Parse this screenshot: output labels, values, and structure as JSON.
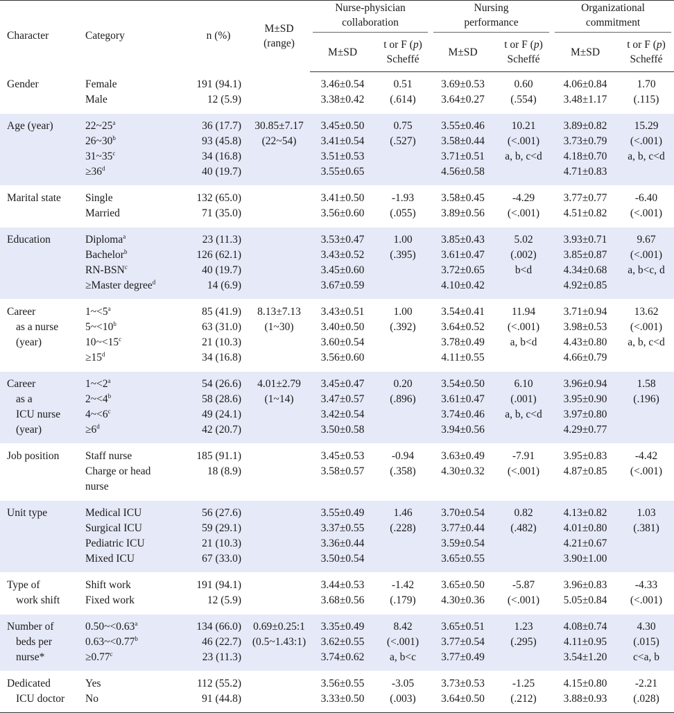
{
  "header": {
    "character": "Character",
    "category": "Category",
    "n": "n (%)",
    "msd_range_1": "M±SD",
    "msd_range_2": "(range)",
    "group1_1": "Nurse-physician",
    "group1_2": "collaboration",
    "group2_1": "Nursing",
    "group2_2": "performance",
    "group3_1": "Organizational",
    "group3_2": "commitment",
    "msd": "M±SD",
    "test_1_pre": "t or F (",
    "test_1_p": "p",
    "test_1_post": ")",
    "test_2": "Scheffé"
  },
  "rows": [
    {
      "character": [
        "Gender"
      ],
      "category": [
        {
          "t": "Female",
          "s": ""
        },
        {
          "t": "Male",
          "s": ""
        }
      ],
      "n": [
        "191 (94.1)",
        "12 (5.9)"
      ],
      "msd_range": [],
      "npc_msd": [
        "3.46±0.54",
        "3.38±0.42"
      ],
      "npc_test": [
        "0.51",
        "(.614)"
      ],
      "np_msd": [
        "3.69±0.53",
        "3.64±0.27"
      ],
      "np_test": [
        "0.60",
        "(.554)"
      ],
      "oc_msd": [
        "4.06±0.84",
        "3.48±1.17"
      ],
      "oc_test": [
        "1.70",
        "(.115)"
      ]
    },
    {
      "character": [
        "Age (year)"
      ],
      "category": [
        {
          "t": "22~25",
          "s": "a"
        },
        {
          "t": "26~30",
          "s": "b"
        },
        {
          "t": "31~35",
          "s": "c"
        },
        {
          "t": "≥36",
          "s": "d"
        }
      ],
      "n": [
        "36 (17.7)",
        "93 (45.8)",
        "34 (16.8)",
        "40 (19.7)"
      ],
      "msd_range": [
        "30.85±7.17",
        "(22~54)"
      ],
      "npc_msd": [
        "3.45±0.50",
        "3.41±0.54",
        "3.51±0.53",
        "3.55±0.65"
      ],
      "npc_test": [
        "0.75",
        "(.527)"
      ],
      "np_msd": [
        "3.55±0.46",
        "3.58±0.44",
        "3.71±0.51",
        "4.56±0.58"
      ],
      "np_test": [
        "10.21",
        "(<.001)",
        "a, b, c<d"
      ],
      "oc_msd": [
        "3.89±0.82",
        "3.73±0.79",
        "4.18±0.70",
        "4.71±0.83"
      ],
      "oc_test": [
        "15.29",
        "(<.001)",
        "a, b, c<d"
      ]
    },
    {
      "character": [
        "Marital state"
      ],
      "category": [
        {
          "t": "Single",
          "s": ""
        },
        {
          "t": "Married",
          "s": ""
        }
      ],
      "n": [
        "132 (65.0)",
        "71 (35.0)"
      ],
      "msd_range": [],
      "npc_msd": [
        "3.41±0.50",
        "3.56±0.60"
      ],
      "npc_test": [
        "-1.93",
        "(.055)"
      ],
      "np_msd": [
        "3.58±0.45",
        "3.89±0.56"
      ],
      "np_test": [
        "-4.29",
        "(<.001)"
      ],
      "oc_msd": [
        "3.77±0.77",
        "4.51±0.82"
      ],
      "oc_test": [
        "-6.40",
        "(<.001)"
      ]
    },
    {
      "character": [
        "Education"
      ],
      "category": [
        {
          "t": "Diploma",
          "s": "a"
        },
        {
          "t": "Bachelor",
          "s": "b"
        },
        {
          "t": "RN-BSN",
          "s": "c"
        },
        {
          "t": "≥Master degree",
          "s": "d"
        }
      ],
      "n": [
        "23 (11.3)",
        "126 (62.1)",
        "40 (19.7)",
        "14 (6.9)"
      ],
      "msd_range": [],
      "npc_msd": [
        "3.53±0.47",
        "3.43±0.52",
        "3.45±0.60",
        "3.67±0.59"
      ],
      "npc_test": [
        "1.00",
        "(.395)"
      ],
      "np_msd": [
        "3.85±0.43",
        "3.61±0.47",
        "3.72±0.65",
        "4.10±0.42"
      ],
      "np_test": [
        "5.02",
        "(.002)",
        "b<d"
      ],
      "oc_msd": [
        "3.93±0.71",
        "3.85±0.87",
        "4.34±0.68",
        "4.92±0.85"
      ],
      "oc_test": [
        "9.67",
        "(<.001)",
        "a, b<c, d"
      ]
    },
    {
      "character": [
        "Career",
        "as a nurse",
        "(year)"
      ],
      "category": [
        {
          "t": "1~<5",
          "s": "a"
        },
        {
          "t": "5~<10",
          "s": "b"
        },
        {
          "t": "10~<15",
          "s": "c"
        },
        {
          "t": "≥15",
          "s": "d"
        }
      ],
      "n": [
        "85 (41.9)",
        "63 (31.0)",
        "21 (10.3)",
        "34 (16.8)"
      ],
      "msd_range": [
        "8.13±7.13",
        "(1~30)"
      ],
      "npc_msd": [
        "3.43±0.51",
        "3.40±0.50",
        "3.60±0.54",
        "3.56±0.60"
      ],
      "npc_test": [
        "1.00",
        "(.392)"
      ],
      "np_msd": [
        "3.54±0.41",
        "3.64±0.52",
        "3.78±0.49",
        "4.11±0.55"
      ],
      "np_test": [
        "11.94",
        "(<.001)",
        "a, b<d"
      ],
      "oc_msd": [
        "3.71±0.94",
        "3.98±0.53",
        "4.43±0.80",
        "4.66±0.79"
      ],
      "oc_test": [
        "13.62",
        "(<.001)",
        "a, b, c<d"
      ]
    },
    {
      "character": [
        "Career",
        "as a",
        "ICU nurse",
        "(year)"
      ],
      "category": [
        {
          "t": "1~<2",
          "s": "a"
        },
        {
          "t": "2~<4",
          "s": "b"
        },
        {
          "t": "4~<6",
          "s": "c"
        },
        {
          "t": "≥6",
          "s": "d"
        }
      ],
      "n": [
        "54 (26.6)",
        "58 (28.6)",
        "49 (24.1)",
        "42 (20.7)"
      ],
      "msd_range": [
        "4.01±2.79",
        "(1~14)"
      ],
      "npc_msd": [
        "3.45±0.47",
        "3.47±0.57",
        "3.42±0.54",
        "3.50±0.58"
      ],
      "npc_test": [
        "0.20",
        "(.896)"
      ],
      "np_msd": [
        "3.54±0.50",
        "3.61±0.47",
        "3.74±0.46",
        "3.94±0.56"
      ],
      "np_test": [
        "6.10",
        "(.001)",
        "a, b, c<d"
      ],
      "oc_msd": [
        "3.96±0.94",
        "3.95±0.90",
        "3.97±0.80",
        "4.29±0.77"
      ],
      "oc_test": [
        "1.58",
        "(.196)"
      ]
    },
    {
      "character": [
        "Job position"
      ],
      "category": [
        {
          "t": "Staff nurse",
          "s": ""
        },
        {
          "t": "Charge or head",
          "s": ""
        },
        {
          "t": "nurse",
          "s": ""
        }
      ],
      "n": [
        "185 (91.1)",
        "18 (8.9)"
      ],
      "msd_range": [],
      "npc_msd": [
        "3.45±0.53",
        "3.58±0.57"
      ],
      "npc_test": [
        "-0.94",
        "(.358)"
      ],
      "np_msd": [
        "3.63±0.49",
        "4.30±0.32"
      ],
      "np_test": [
        "-7.91",
        "(<.001)"
      ],
      "oc_msd": [
        "3.95±0.83",
        "4.87±0.85"
      ],
      "oc_test": [
        "-4.42",
        "(<.001)"
      ]
    },
    {
      "character": [
        "Unit type"
      ],
      "category": [
        {
          "t": "Medical ICU",
          "s": ""
        },
        {
          "t": "Surgical ICU",
          "s": ""
        },
        {
          "t": "Pediatric ICU",
          "s": ""
        },
        {
          "t": "Mixed ICU",
          "s": ""
        }
      ],
      "n": [
        "56 (27.6)",
        "59 (29.1)",
        "21 (10.3)",
        "67 (33.0)"
      ],
      "msd_range": [],
      "npc_msd": [
        "3.55±0.49",
        "3.37±0.55",
        "3.36±0.44",
        "3.50±0.54"
      ],
      "npc_test": [
        "1.46",
        "(.228)"
      ],
      "np_msd": [
        "3.70±0.54",
        "3.77±0.44",
        "3.59±0.54",
        "3.65±0.55"
      ],
      "np_test": [
        "0.82",
        "(.482)"
      ],
      "oc_msd": [
        "4.13±0.82",
        "4.01±0.80",
        "4.21±0.67",
        "3.90±1.00"
      ],
      "oc_test": [
        "1.03",
        "(.381)"
      ]
    },
    {
      "character": [
        "Type of",
        "work shift"
      ],
      "category": [
        {
          "t": "Shift work",
          "s": ""
        },
        {
          "t": "Fixed work",
          "s": ""
        }
      ],
      "n": [
        "191 (94.1)",
        "12 (5.9)"
      ],
      "msd_range": [],
      "npc_msd": [
        "3.44±0.53",
        "3.68±0.56"
      ],
      "npc_test": [
        "-1.42",
        "(.179)"
      ],
      "np_msd": [
        "3.65±0.50",
        "4.30±0.36"
      ],
      "np_test": [
        "-5.87",
        "(<.001)"
      ],
      "oc_msd": [
        "3.96±0.83",
        "5.05±0.84"
      ],
      "oc_test": [
        "-4.33",
        "(<.001)"
      ]
    },
    {
      "character": [
        "Number of",
        "beds per",
        "nurse*"
      ],
      "category": [
        {
          "t": "0.50~<0.63",
          "s": "a"
        },
        {
          "t": "0.63~<0.77",
          "s": "b"
        },
        {
          "t": "≥0.77",
          "s": "c"
        }
      ],
      "n": [
        "134 (66.0)",
        "46 (22.7)",
        "23 (11.3)"
      ],
      "msd_range": [
        "0.69±0.25:1",
        "(0.5~1.43:1)"
      ],
      "npc_msd": [
        "3.35±0.49",
        "3.62±0.55",
        "3.74±0.62"
      ],
      "npc_test": [
        "8.42",
        "(<.001)",
        "a, b<c"
      ],
      "np_msd": [
        "3.65±0.51",
        "3.77±0.54",
        "3.77±0.49"
      ],
      "np_test": [
        "1.23",
        "(.295)"
      ],
      "oc_msd": [
        "4.08±0.74",
        "4.11±0.95",
        "3.54±1.20"
      ],
      "oc_test": [
        "4.30",
        "(.015)",
        "c<a, b"
      ]
    },
    {
      "character": [
        "Dedicated",
        "ICU doctor"
      ],
      "category": [
        {
          "t": "Yes",
          "s": ""
        },
        {
          "t": "No",
          "s": ""
        }
      ],
      "n": [
        "112 (55.2)",
        "91 (44.8)"
      ],
      "msd_range": [],
      "npc_msd": [
        "3.56±0.55",
        "3.33±0.50"
      ],
      "npc_test": [
        "-3.05",
        "(.003)"
      ],
      "np_msd": [
        "3.73±0.53",
        "3.64±0.50"
      ],
      "np_test": [
        "-1.25",
        "(.212)"
      ],
      "oc_msd": [
        "4.15±0.80",
        "3.88±0.93"
      ],
      "oc_test": [
        "-2.21",
        "(.028)"
      ]
    }
  ]
}
